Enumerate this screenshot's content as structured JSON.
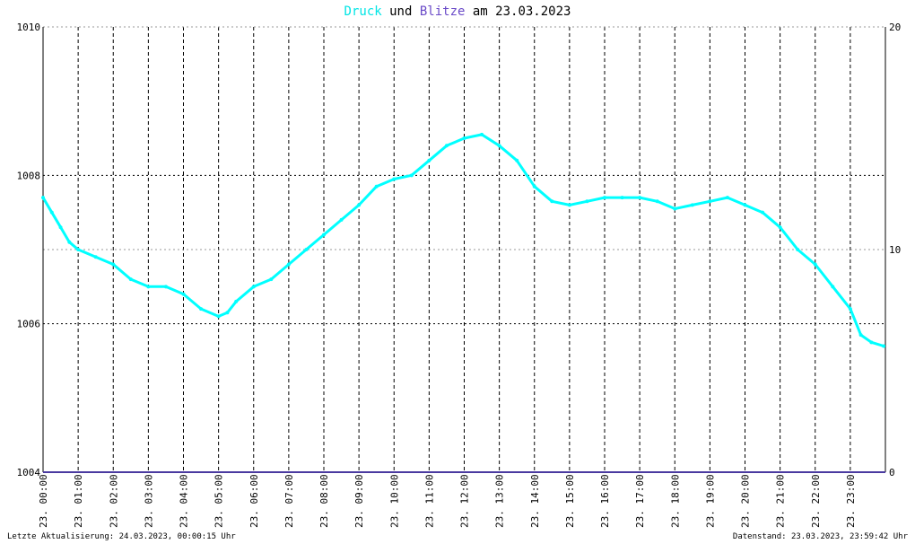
{
  "title": {
    "series1": "Druck",
    "connector": "und",
    "series2": "Blitze",
    "suffix": "am 23.03.2023"
  },
  "colors": {
    "pressure": "#00ffff",
    "lightning": "#4a3aa0",
    "title_series1": "#00e5e5",
    "title_series2": "#6a4ac8",
    "grid": "#000000"
  },
  "footer": {
    "left": "Letzte Aktualisierung: 24.03.2023, 00:00:15 Uhr",
    "right": "Datenstand: 23.03.2023, 23:59:42 Uhr"
  },
  "chart_data": {
    "type": "line",
    "grid": true,
    "y_left": {
      "min": 1004,
      "max": 1010,
      "ticks": [
        "1010",
        "1008",
        "1006",
        "1004"
      ]
    },
    "y_right": {
      "min": 0,
      "max": 20,
      "ticks": [
        "20",
        "10",
        "0"
      ]
    },
    "x_ticks": [
      "23. 00:00",
      "23. 01:00",
      "23. 02:00",
      "23. 03:00",
      "23. 04:00",
      "23. 05:00",
      "23. 06:00",
      "23. 07:00",
      "23. 08:00",
      "23. 09:00",
      "23. 10:00",
      "23. 11:00",
      "23. 12:00",
      "23. 13:00",
      "23. 14:00",
      "23. 15:00",
      "23. 16:00",
      "23. 17:00",
      "23. 18:00",
      "23. 19:00",
      "23. 20:00",
      "23. 21:00",
      "23. 22:00",
      "23. 23:00"
    ],
    "x_range_hours": [
      0,
      24
    ],
    "series": [
      {
        "name": "Druck",
        "axis": "left",
        "x_hours": [
          0,
          0.25,
          0.5,
          0.75,
          1.0,
          1.5,
          2.0,
          2.5,
          3.0,
          3.5,
          4.0,
          4.5,
          5.0,
          5.25,
          5.5,
          6.0,
          6.5,
          7.0,
          7.5,
          8.0,
          8.5,
          9.0,
          9.5,
          10.0,
          10.5,
          11.0,
          11.5,
          12.0,
          12.5,
          13.0,
          13.5,
          14.0,
          14.5,
          15.0,
          15.5,
          16.0,
          16.5,
          17.0,
          17.5,
          18.0,
          18.5,
          19.0,
          19.5,
          20.0,
          20.5,
          21.0,
          21.5,
          22.0,
          22.5,
          23.0,
          23.3,
          23.6,
          23.95
        ],
        "values": [
          1007.7,
          1007.5,
          1007.3,
          1007.1,
          1007.0,
          1006.9,
          1006.8,
          1006.6,
          1006.5,
          1006.5,
          1006.4,
          1006.2,
          1006.1,
          1006.15,
          1006.3,
          1006.5,
          1006.6,
          1006.8,
          1007.0,
          1007.2,
          1007.4,
          1007.6,
          1007.85,
          1007.95,
          1008.0,
          1008.2,
          1008.4,
          1008.5,
          1008.55,
          1008.4,
          1008.2,
          1007.85,
          1007.65,
          1007.6,
          1007.65,
          1007.7,
          1007.7,
          1007.7,
          1007.65,
          1007.55,
          1007.6,
          1007.65,
          1007.7,
          1007.6,
          1007.5,
          1007.3,
          1007.0,
          1006.8,
          1006.5,
          1006.2,
          1005.85,
          1005.75,
          1005.7
        ]
      },
      {
        "name": "Blitze",
        "axis": "right",
        "x_hours": [
          0,
          24
        ],
        "values": [
          0,
          0
        ]
      }
    ]
  }
}
